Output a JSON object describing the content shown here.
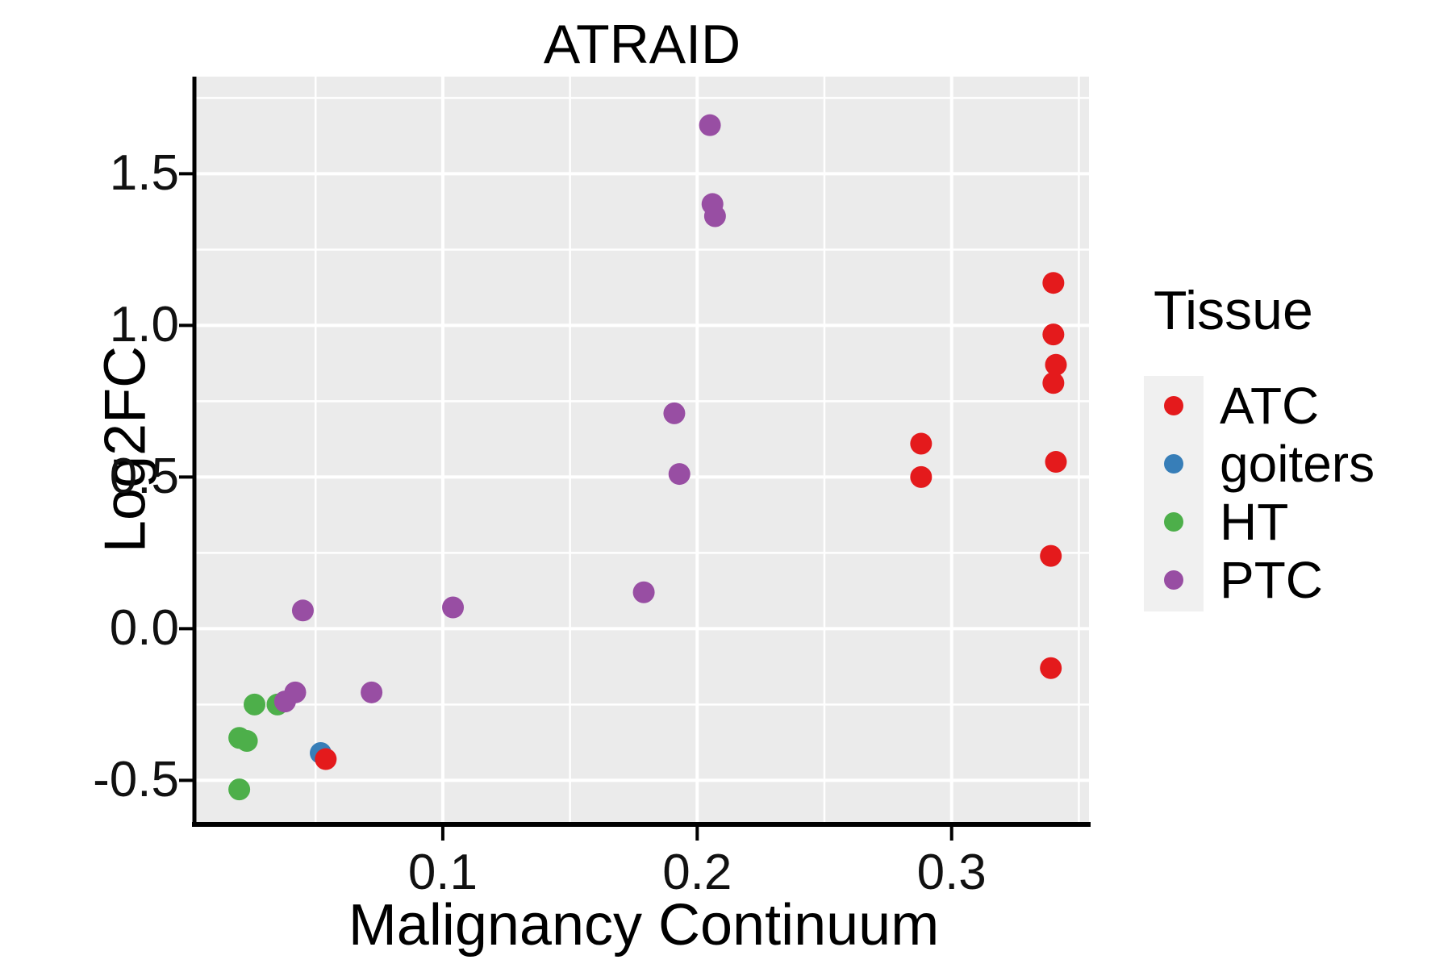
{
  "title": "ATRAID",
  "axes": {
    "x": {
      "label": "Malignancy Continuum",
      "ticks": [
        0.1,
        0.2,
        0.3
      ],
      "tick_labels": [
        "0.1",
        "0.2",
        "0.3"
      ],
      "minor_ticks": [
        0.05,
        0.15,
        0.25,
        0.35
      ],
      "range": [
        0.003,
        0.354
      ]
    },
    "y": {
      "label": "Log2FC",
      "ticks": [
        1.5,
        1.0,
        0.5,
        0.0,
        -0.5
      ],
      "tick_labels": [
        "1.5",
        "1.0",
        "0.5",
        "0.0",
        "-0.5"
      ],
      "minor_ticks": [
        1.75,
        1.25,
        0.75,
        0.25,
        -0.25
      ],
      "range": [
        -0.64,
        1.82
      ]
    }
  },
  "legend": {
    "title": "Tissue",
    "entries": [
      {
        "label": "ATC",
        "color": "#E41A1C"
      },
      {
        "label": "goiters",
        "color": "#377EB8"
      },
      {
        "label": "HT",
        "color": "#4DAF4A"
      },
      {
        "label": "PTC",
        "color": "#984EA3"
      }
    ]
  },
  "style": {
    "panel_background": "#EBEBEB",
    "grid_color": "#FFFFFF",
    "legend_key_background": "#F0F0F0",
    "axis_color": "#000000"
  },
  "chart_data": {
    "type": "scatter",
    "title": "ATRAID",
    "xlabel": "Malignancy Continuum",
    "ylabel": "Log2FC",
    "xlim": [
      0.003,
      0.354
    ],
    "ylim": [
      -0.64,
      1.82
    ],
    "grid": true,
    "legend_position": "right",
    "draw_order": [
      "goiters",
      "HT",
      "PTC",
      "ATC"
    ],
    "series": [
      {
        "name": "ATC",
        "color": "#E41A1C",
        "points": [
          [
            0.34,
            1.14
          ],
          [
            0.34,
            0.97
          ],
          [
            0.341,
            0.87
          ],
          [
            0.34,
            0.81
          ],
          [
            0.341,
            0.55
          ],
          [
            0.288,
            0.61
          ],
          [
            0.288,
            0.5
          ],
          [
            0.339,
            0.24
          ],
          [
            0.339,
            -0.13
          ],
          [
            0.054,
            -0.43
          ]
        ]
      },
      {
        "name": "goiters",
        "color": "#377EB8",
        "points": [
          [
            0.052,
            -0.41
          ]
        ]
      },
      {
        "name": "HT",
        "color": "#4DAF4A",
        "points": [
          [
            0.026,
            -0.25
          ],
          [
            0.035,
            -0.25
          ],
          [
            0.02,
            -0.36
          ],
          [
            0.023,
            -0.37
          ],
          [
            0.02,
            -0.53
          ]
        ]
      },
      {
        "name": "PTC",
        "color": "#984EA3",
        "points": [
          [
            0.205,
            1.66
          ],
          [
            0.206,
            1.4
          ],
          [
            0.207,
            1.36
          ],
          [
            0.191,
            0.71
          ],
          [
            0.193,
            0.51
          ],
          [
            0.179,
            0.12
          ],
          [
            0.104,
            0.07
          ],
          [
            0.045,
            0.06
          ],
          [
            0.072,
            -0.21
          ],
          [
            0.042,
            -0.21
          ],
          [
            0.038,
            -0.24
          ]
        ]
      }
    ]
  }
}
